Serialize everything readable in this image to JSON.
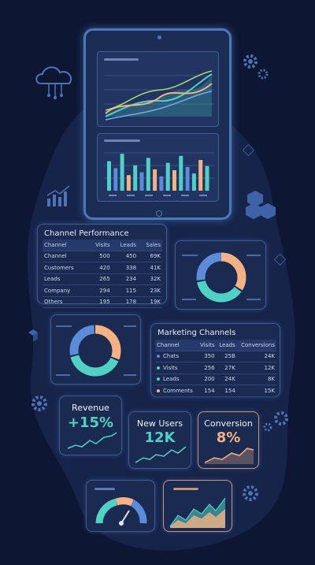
{
  "colors": {
    "bg": "#0d1733",
    "teal": "#4fd1c5",
    "peach": "#f4b183",
    "blue": "#5b8bd9",
    "lime": "#a8e06b"
  },
  "channel_performance": {
    "title": "Channel Performance",
    "headers": [
      "Channel",
      "Visits",
      "Leads",
      "Sales"
    ],
    "rows": [
      [
        "Channel",
        "500",
        "450",
        "69K"
      ],
      [
        "Customers",
        "420",
        "338",
        "41K"
      ],
      [
        "Leads",
        "265",
        "234",
        "32K"
      ],
      [
        "Company",
        "294",
        "115",
        "23K"
      ],
      [
        "Others",
        "195",
        "178",
        "19K"
      ]
    ]
  },
  "marketing_channels": {
    "title": "Marketing Channels",
    "headers": [
      "Channel",
      "Visits",
      "Leads",
      "Conversions"
    ],
    "rows": [
      [
        "Chats",
        "350",
        "25B",
        "24K"
      ],
      [
        "Visits",
        "256",
        "27K",
        "12K"
      ],
      [
        "Leads",
        "200",
        "24K",
        "8K"
      ],
      [
        "Comments",
        "154",
        "154",
        "15K"
      ]
    ]
  },
  "kpis": {
    "revenue": {
      "label": "Revenue",
      "value": "+15%"
    },
    "new_users": {
      "label": "New Users",
      "value": "12K"
    },
    "conversion": {
      "label": "Conversion",
      "value": "8%"
    }
  },
  "icons": [
    "cloud-network-icon",
    "bar-trend-icon",
    "gear-icon",
    "cubes-icon",
    "gauge-icon"
  ]
}
